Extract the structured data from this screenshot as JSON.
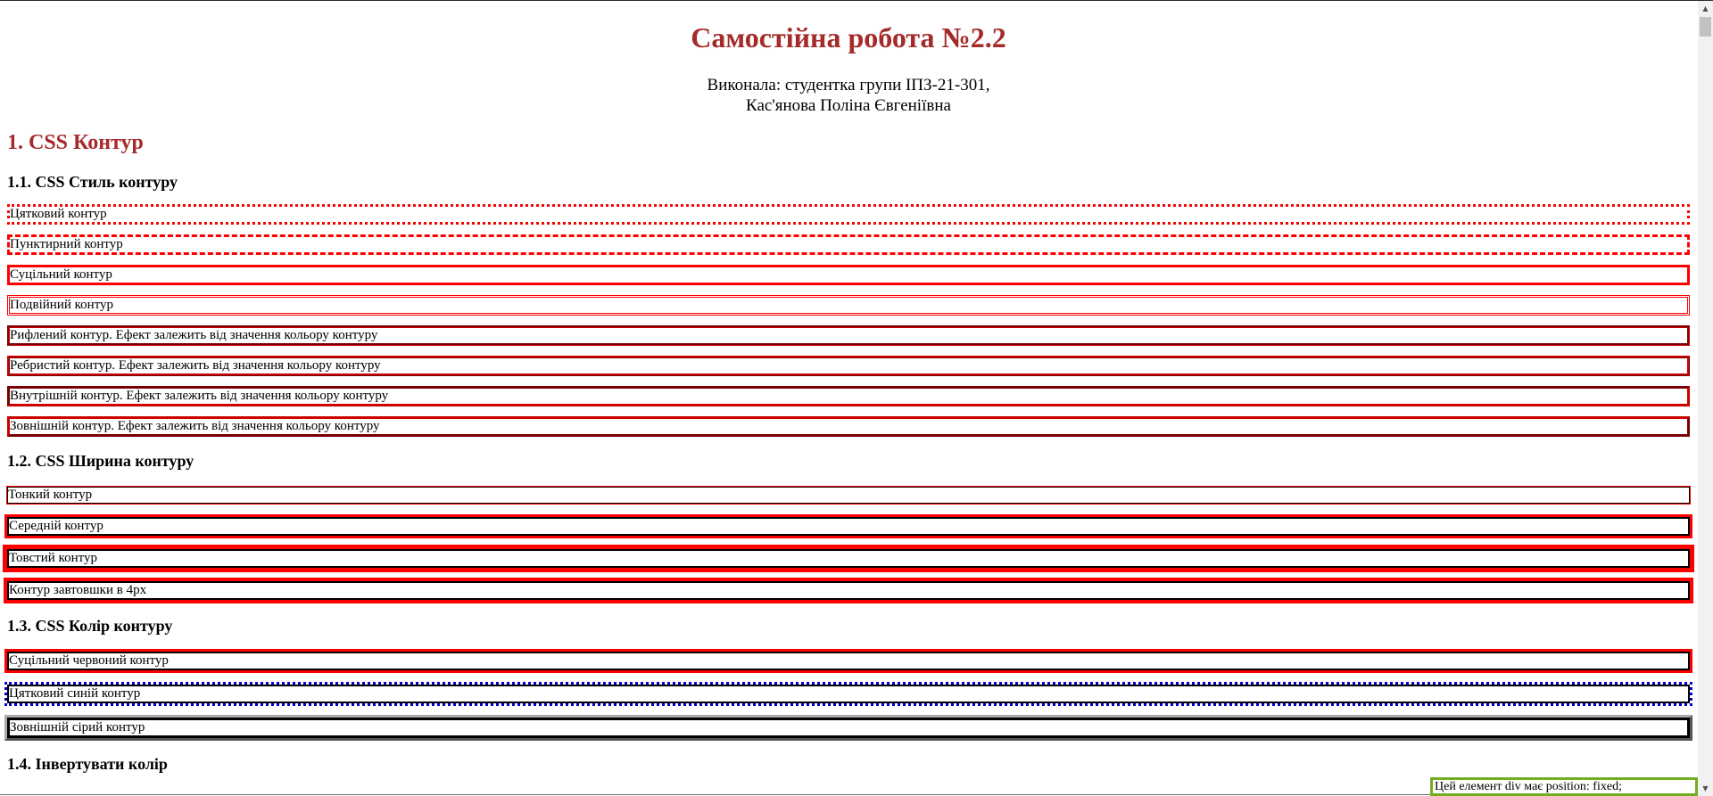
{
  "header": {
    "title": "Самостійна робота №2.2",
    "author_line1": "Виконала: студентка групи ІПЗ-21-301,",
    "author_line2": "Кас'янова Поліна Євгеніївна"
  },
  "section1": {
    "heading": "1. CSS Контур",
    "styles": {
      "heading": "1.1. CSS Стиль контуру",
      "items": [
        "Цятковий контур",
        "Пунктирний контур",
        "Суцільний контур",
        "Подвійний контур",
        "Рифлений контур. Ефект залежить від значення кольору контуру",
        "Ребристий контур. Ефект залежить від значення кольору контуру",
        "Внутрішній контур. Ефект залежить від значення кольору контуру",
        "Зовнішній контур. Ефект залежить від значення кольору контуру"
      ]
    },
    "widths": {
      "heading": "1.2. CSS Ширина контуру",
      "items": [
        "Тонкий контур",
        "Середній контур",
        "Товстий контур",
        "Контур завтовшки в 4px"
      ]
    },
    "colors": {
      "heading": "1.3. CSS Колір контуру",
      "items": [
        "Суцільний червоний контур",
        "Цятковий синій контур",
        "Зовнішній сірий контур"
      ]
    },
    "invert": {
      "heading": "1.4. Інвертувати колір"
    }
  },
  "fixed_element": {
    "text": "Цей елемент div має position: fixed;"
  },
  "colors": {
    "heading_accent": "#a52a2a",
    "outline_red": "#ff0000",
    "outline_blue": "#0000cc",
    "outline_grey": "#aaaaaa",
    "fixed_border": "#73ad21"
  }
}
